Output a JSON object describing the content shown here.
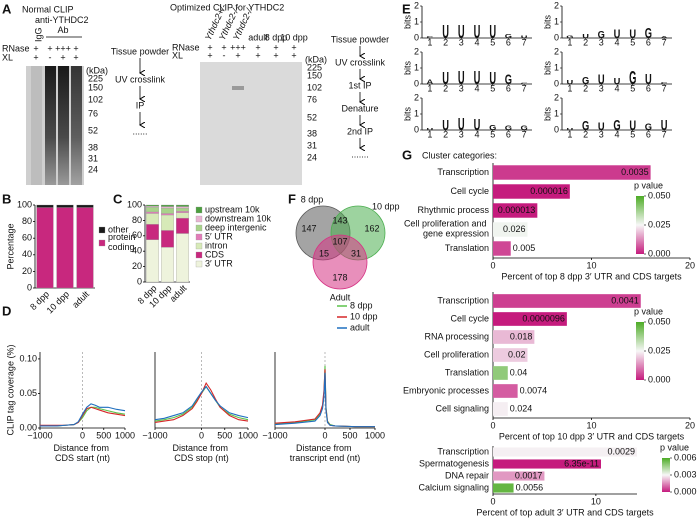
{
  "panel_labels": {
    "a": "A",
    "b": "B",
    "c": "C",
    "d": "D",
    "e": "E",
    "f": "F",
    "g": "G"
  },
  "panel_a": {
    "normal": {
      "title": "Normal CLIP",
      "control": "IgG",
      "antibody": "anti-YTHDC2 Ab",
      "row_labels": [
        "RNase",
        "XL"
      ],
      "rnase": [
        "+",
        "+",
        "+++",
        "+"
      ],
      "xl": [
        "+",
        "-",
        "+",
        "+"
      ],
      "kda_unit": "(kDa)",
      "kda": [
        225,
        150,
        102,
        76,
        52,
        38,
        31,
        24
      ]
    },
    "normal_flow": [
      "Tissue powder",
      "UV crosslink",
      "IP",
      "......"
    ],
    "optimized": {
      "title": "Optimized CLIP for YTHDC2",
      "genotypes": [
        "Ythdc2+/-",
        "Ythdc2-/-",
        "Ythdc2-/-"
      ],
      "stages": [
        "adult",
        "8 dpp",
        "10 dpp"
      ],
      "row_labels": [
        "RNase",
        "XL"
      ],
      "rnase": [
        "+",
        "+",
        "+++",
        "+",
        "+",
        "+"
      ],
      "xl": [
        "+",
        "-",
        "+",
        "+",
        "+",
        "+"
      ],
      "kda_unit": "(kDa)",
      "kda": [
        225,
        150,
        102,
        76,
        52,
        38,
        31,
        24
      ]
    },
    "optimized_flow": [
      "Tissue powder",
      "UV crosslink",
      "1st IP",
      "Denature",
      "2nd IP",
      "......."
    ]
  },
  "chart_data": [
    {
      "type": "stacked_bar",
      "ylabel": "Percentage",
      "categories": [
        "8 dpp",
        "10 dpp",
        "adult"
      ],
      "series": [
        {
          "name": "protein coding",
          "color": "#c8287e",
          "values": [
            97,
            97,
            97
          ]
        },
        {
          "name": "other",
          "color": "#1a1a1a",
          "values": [
            3,
            3,
            3
          ]
        }
      ],
      "ylim": [
        0,
        100
      ],
      "yticks": [
        0,
        20,
        40,
        60,
        80,
        100
      ]
    },
    {
      "type": "stacked_bar",
      "categories": [
        "8 dpp",
        "10 dpp",
        "adult"
      ],
      "series": [
        {
          "name": "3′ UTR",
          "color": "#eef3dc",
          "values": [
            55,
            45,
            63
          ]
        },
        {
          "name": "CDS",
          "color": "#c8287e",
          "values": [
            20,
            22,
            20
          ]
        },
        {
          "name": "intron",
          "color": "#d7eab8",
          "values": [
            14,
            20,
            7
          ]
        },
        {
          "name": "5′ UTR",
          "color": "#e27cb8",
          "values": [
            2,
            2,
            2
          ]
        },
        {
          "name": "deep intergenic",
          "color": "#a8d38a",
          "values": [
            6,
            7,
            4
          ]
        },
        {
          "name": "downstream 10k",
          "color": "#e9b3d2",
          "values": [
            1.5,
            2,
            2
          ]
        },
        {
          "name": "upstream 10k",
          "color": "#4c9e3f",
          "values": [
            1.5,
            2,
            2
          ]
        }
      ],
      "ylim": [
        0,
        100
      ],
      "yticks": [
        0,
        20,
        40,
        60,
        80,
        100
      ]
    },
    {
      "type": "line",
      "ylabel": "CLIP tag coverage (%)",
      "xlabel": "Distance from CDS start (nt)",
      "x": [
        -1000,
        -800,
        -600,
        -400,
        -200,
        -100,
        0,
        100,
        200,
        300,
        400,
        600,
        800,
        1000
      ],
      "series": [
        {
          "color": "#5cc24a",
          "values": [
            0.003,
            0.003,
            0.003,
            0.004,
            0.005,
            0.008,
            0.015,
            0.025,
            0.03,
            0.03,
            0.028,
            0.025,
            0.022,
            0.02
          ]
        },
        {
          "color": "#d62728",
          "values": [
            0.004,
            0.004,
            0.004,
            0.004,
            0.005,
            0.008,
            0.018,
            0.028,
            0.03,
            0.028,
            0.026,
            0.022,
            0.02,
            0.018
          ]
        },
        {
          "color": "#1f6fbf",
          "values": [
            0.003,
            0.003,
            0.003,
            0.004,
            0.005,
            0.009,
            0.02,
            0.03,
            0.035,
            0.033,
            0.03,
            0.03,
            0.027,
            0.025
          ]
        }
      ],
      "xlim": [
        -1000,
        1000
      ],
      "xticks": [
        {
          "value": -1000,
          "label": "−1000"
        },
        0,
        500,
        1000
      ],
      "ylim": [
        0,
        0.11
      ],
      "yticks": [
        {
          "value": 0,
          "label": "0.00"
        },
        0.05,
        {
          "value": 0.1,
          "label": "0.10"
        }
      ]
    },
    {
      "type": "line",
      "xlabel": "Distance from CDS stop (nt)",
      "x": [
        -1000,
        -800,
        -600,
        -400,
        -200,
        -100,
        0,
        100,
        200,
        300,
        400,
        600,
        800,
        1000
      ],
      "series": [
        {
          "color": "#5cc24a",
          "values": [
            0.01,
            0.012,
            0.015,
            0.02,
            0.03,
            0.04,
            0.05,
            0.06,
            0.05,
            0.04,
            0.03,
            0.02,
            0.015,
            0.012
          ]
        },
        {
          "color": "#d62728",
          "values": [
            0.008,
            0.01,
            0.012,
            0.018,
            0.028,
            0.038,
            0.05,
            0.065,
            0.055,
            0.042,
            0.03,
            0.018,
            0.012,
            0.01
          ]
        },
        {
          "color": "#1f6fbf",
          "values": [
            0.012,
            0.014,
            0.018,
            0.022,
            0.032,
            0.042,
            0.052,
            0.06,
            0.05,
            0.04,
            0.032,
            0.022,
            0.018,
            0.015
          ]
        }
      ],
      "xlim": [
        -1000,
        1000
      ],
      "xticks": [
        {
          "value": -1000,
          "label": "−1000"
        },
        0,
        500,
        1000
      ],
      "ylim": [
        0,
        0.11
      ]
    },
    {
      "type": "line",
      "xlabel": "Distance from transcript end (nt)",
      "legend": "top right",
      "x": [
        -1000,
        -600,
        -200,
        -100,
        -50,
        -20,
        0,
        20,
        50,
        100,
        200,
        600,
        1000
      ],
      "series": [
        {
          "name": "8 dpp",
          "color": "#5cc24a",
          "values": [
            0.006,
            0.008,
            0.012,
            0.02,
            0.03,
            0.05,
            0.09,
            0.03,
            0.01,
            0.005,
            0.003,
            0.002,
            0.002
          ]
        },
        {
          "name": "10 dpp",
          "color": "#d62728",
          "values": [
            0.007,
            0.009,
            0.013,
            0.022,
            0.033,
            0.055,
            0.085,
            0.028,
            0.009,
            0.004,
            0.003,
            0.002,
            0.002
          ]
        },
        {
          "name": "adult",
          "color": "#1f6fbf",
          "values": [
            0.005,
            0.007,
            0.01,
            0.018,
            0.028,
            0.045,
            0.08,
            0.025,
            0.008,
            0.004,
            0.003,
            0.002,
            0.002
          ]
        }
      ],
      "xlim": [
        -1000,
        1000
      ],
      "xticks": [
        {
          "value": -1000,
          "label": "−1000"
        },
        0,
        500,
        1000
      ],
      "ylim": [
        0,
        0.11
      ]
    },
    {
      "type": "logo",
      "ylabel": "bits",
      "ylim": [
        0,
        2
      ],
      "yticks": [
        0,
        1,
        2
      ],
      "xticks": [
        1,
        2,
        3,
        4,
        5,
        6,
        7
      ],
      "letter_colors": {
        "A": "#2ca02c",
        "C": "#1f5fbf",
        "G": "#f0a500",
        "U": "#d62728"
      },
      "logos": [
        {
          "letters": [
            "C",
            "U",
            "U",
            "U",
            "U",
            "G",
            "U"
          ],
          "values": [
            0.3,
            1.8,
            1.8,
            1.8,
            1.8,
            0.5,
            0.4
          ]
        },
        {
          "letters": [
            "G",
            "U",
            "G",
            "U",
            "U",
            "G",
            "A"
          ],
          "values": [
            0.4,
            0.5,
            1.0,
            1.2,
            1.2,
            1.5,
            0.3
          ]
        },
        {
          "letters": [
            "A",
            "U",
            "U",
            "U",
            "U",
            "G",
            "C"
          ],
          "values": [
            0.6,
            1.7,
            1.8,
            1.8,
            1.7,
            1.4,
            0.2
          ]
        },
        {
          "letters": [
            "U",
            "G",
            "U",
            "U",
            "G",
            "U",
            "C"
          ],
          "values": [
            0.5,
            1.0,
            1.4,
            0.8,
            1.8,
            1.5,
            0.3
          ]
        },
        {
          "letters": [
            "U",
            "U",
            "U",
            "U",
            "G",
            "G",
            "G"
          ],
          "values": [
            0.3,
            1.5,
            1.7,
            1.6,
            0.7,
            0.6,
            0.6
          ]
        },
        {
          "letters": [
            "U",
            "G",
            "U",
            "G",
            "U",
            "G",
            "U"
          ],
          "values": [
            0.3,
            1.3,
            1.1,
            1.5,
            1.4,
            0.9,
            1.5
          ]
        }
      ]
    },
    {
      "type": "venn",
      "sets": [
        "8 dpp",
        "10 dpp",
        "Adult"
      ],
      "colors": [
        "#5a5a5a",
        "#4caf50",
        "#d63384"
      ],
      "values": [
        147,
        162,
        178,
        143,
        15,
        31,
        107
      ]
    },
    {
      "type": "hbar",
      "title": "Cluster categories:",
      "xlabel": "Percent of top 8 dpp 3′ UTR and CDS targets",
      "categories": [
        "Transcription",
        "Cell cycle",
        "Rhythmic process",
        "Cell proliferation and gene expression",
        "Translation"
      ],
      "values": [
        16,
        7.8,
        4.5,
        3.5,
        1.8
      ],
      "pvalues": [
        0.0035,
        1.6e-05,
        1.3e-05,
        0.026,
        0.005
      ],
      "xlim": [
        0,
        20
      ],
      "xticks": [
        0,
        10,
        20
      ],
      "colorbar": {
        "title": "p value",
        "colors": [
          "#c51b7d",
          "#f7f7f7",
          "#4dac26"
        ],
        "lim": [
          0,
          0.05
        ],
        "ticks": [
          {
            "value": 0,
            "label": "0.000"
          },
          0.025,
          {
            "value": 0.05,
            "label": "0.050"
          }
        ]
      }
    },
    {
      "type": "hbar",
      "xlabel": "Percent of top 10 dpp 3′ UTR and CDS targets",
      "categories": [
        "Transcription",
        "Cell cycle",
        "RNA processing",
        "Cell proliferation",
        "Translation",
        "Embryonic processes",
        "Cell signaling"
      ],
      "values": [
        15,
        7.5,
        4.2,
        3.5,
        1.5,
        2.5,
        1.5
      ],
      "pvalues": [
        0.0041,
        9.6e-06,
        0.018,
        0.02,
        0.04,
        0.0074,
        0.024
      ],
      "xlim": [
        0,
        20
      ],
      "xticks": [
        0,
        10,
        20
      ],
      "colorbar": {
        "title": "p value",
        "colors": [
          "#c51b7d",
          "#f7f7f7",
          "#4dac26"
        ],
        "lim": [
          0,
          0.05
        ],
        "ticks": [
          {
            "value": 0,
            "label": "0.000"
          },
          0.025,
          {
            "value": 0.05,
            "label": "0.050"
          }
        ]
      }
    },
    {
      "type": "hbar",
      "xlabel": "Percent of top adult 3′ UTR and CDS targets",
      "categories": [
        "Transcription",
        "Spermatogenesis",
        "DNA repair",
        "Calcium signaling"
      ],
      "values": [
        14,
        10.5,
        5,
        2
      ],
      "pvalues": [
        0.0029,
        6.35e-11,
        0.0017,
        0.0056
      ],
      "xlim": [
        0,
        14
      ],
      "xticks": [
        0,
        10
      ],
      "colorbar": {
        "title": "p value",
        "colors": [
          "#c51b7d",
          "#f7f7f7",
          "#4dac26"
        ],
        "lim": [
          0,
          0.006
        ],
        "ticks": [
          {
            "value": 0,
            "label": "0.000"
          },
          0.003,
          {
            "value": 0.006,
            "label": "0.006"
          }
        ]
      }
    }
  ]
}
